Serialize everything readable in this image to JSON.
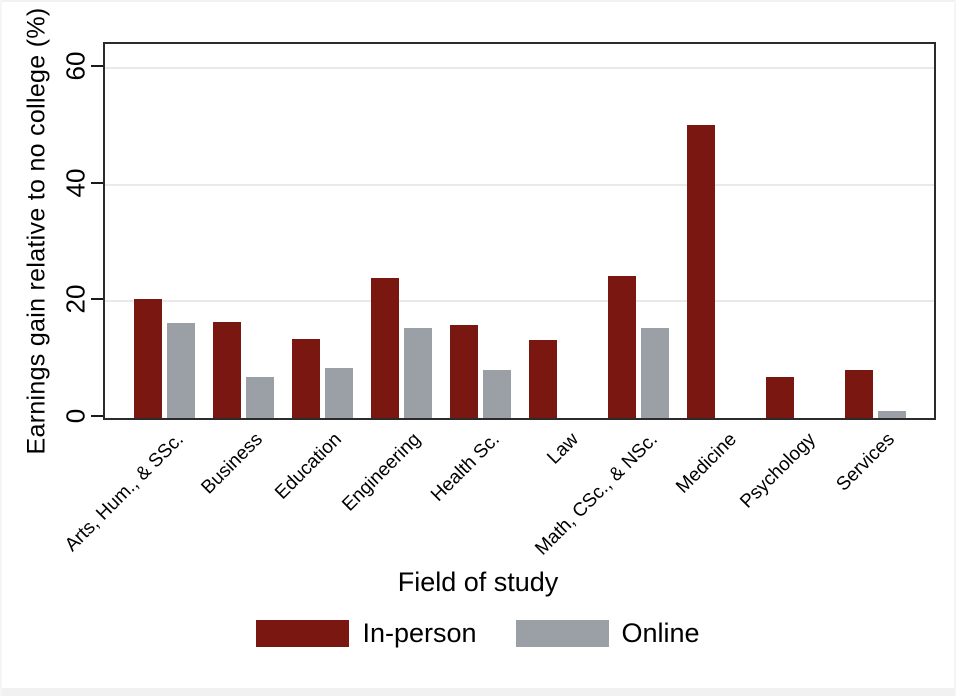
{
  "figure": {
    "y_axis_title": "Earnings gain relative to no college (%)",
    "x_axis_title": "Field of study"
  },
  "legend": {
    "items": [
      {
        "label": "In-person",
        "color": "#7a1710"
      },
      {
        "label": "Online",
        "color": "#9aa0a5"
      }
    ]
  },
  "colors": {
    "in_person": "#7a1710",
    "online": "#9aa0a5",
    "gridline": "#e9e9e9",
    "axis": "#2b2b2b"
  },
  "chart_data": {
    "type": "bar",
    "title": "",
    "xlabel": "Field of study",
    "ylabel": "Earnings gain relative to no college (%)",
    "ylim": [
      0,
      64
    ],
    "yticks": [
      0,
      20,
      40,
      60
    ],
    "grid": "horizontal",
    "legend_position": "bottom",
    "categories": [
      "Arts, Hum., & SSc.",
      "Business",
      "Education",
      "Engineering",
      "Health Sc.",
      "Law",
      "Math, CSc., & NSc.",
      "Medicine",
      "Psychology",
      "Services"
    ],
    "series": [
      {
        "name": "In-person",
        "color": "#7a1710",
        "values": [
          20.5,
          16.5,
          13.5,
          24.0,
          16.0,
          13.4,
          24.4,
          50.3,
          7.0,
          8.2
        ]
      },
      {
        "name": "Online",
        "color": "#9aa0a5",
        "values": [
          16.3,
          7.0,
          8.5,
          15.5,
          8.2,
          0,
          15.5,
          0,
          0,
          1.2
        ]
      }
    ]
  }
}
